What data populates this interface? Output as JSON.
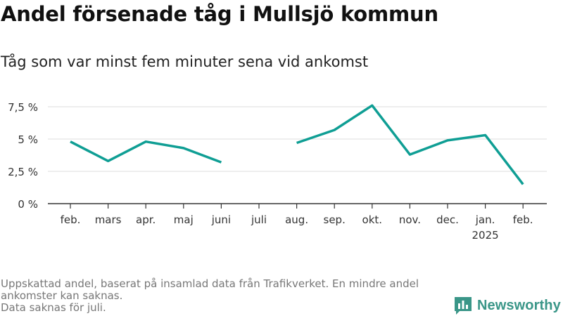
{
  "title": "Andel försenade tåg i Mullsjö kommun",
  "subtitle": "Tåg som var minst fem minuter sena vid ankomst",
  "source": {
    "line1": "Uppskattad andel, baserat på insamlad data från Trafikverket. En mindre andel",
    "line2": "ankomster kan saknas.",
    "line3": "Data saknas för juli."
  },
  "brand": {
    "name": "Newsworthy",
    "logo_icon": "bar-chart-logo-icon",
    "color": "#3a9688"
  },
  "colors": {
    "line": "#0f9e94",
    "grid": "#dddddd",
    "axis": "#333333"
  },
  "chart_data": {
    "type": "line",
    "categories": [
      "feb.",
      "mars",
      "apr.",
      "maj",
      "juni",
      "juli",
      "aug.",
      "sep.",
      "okt.",
      "nov.",
      "dec.",
      "jan.",
      "feb."
    ],
    "category_sublabels": [
      "",
      "",
      "",
      "",
      "",
      "",
      "",
      "",
      "",
      "",
      "",
      "2025",
      ""
    ],
    "series": [
      {
        "values": [
          4.8,
          3.3,
          4.8,
          4.3,
          3.2,
          null,
          4.7,
          5.7,
          7.6,
          3.8,
          4.9,
          5.3,
          1.5
        ]
      }
    ],
    "yticks": [
      0,
      2.5,
      5,
      7.5
    ],
    "ytick_labels": [
      "0 %",
      "2,5 %",
      "5 %",
      "7,5 %"
    ],
    "ylim": [
      0,
      8
    ],
    "grid": true,
    "xlabel": "",
    "ylabel": ""
  }
}
